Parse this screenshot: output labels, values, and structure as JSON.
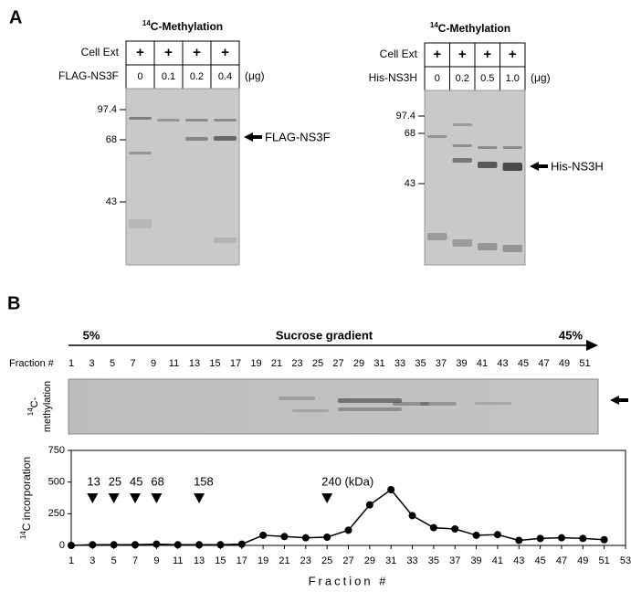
{
  "panel_a": {
    "label": "A",
    "left": {
      "title_sup": "14",
      "title": "C-Methylation",
      "row1_label": "Cell Ext",
      "row1": [
        "+",
        "+",
        "+",
        "+"
      ],
      "row2_label": "FLAG-NS3F",
      "row2": [
        "0",
        "0.1",
        "0.2",
        "0.4"
      ],
      "unit": "(μg)",
      "mw": [
        "97.4",
        "68",
        "43"
      ],
      "band_label": "FLAG-NS3F"
    },
    "right": {
      "title_sup": "14",
      "title": "C-Methylation",
      "row1_label": "Cell Ext",
      "row1": [
        "+",
        "+",
        "+",
        "+"
      ],
      "row2_label": "His-NS3H",
      "row2": [
        "0",
        "0.2",
        "0.5",
        "1.0"
      ],
      "unit": "(μg)",
      "mw": [
        "97.4",
        "68",
        "43"
      ],
      "band_label": "His-NS3H"
    }
  },
  "panel_b": {
    "label": "B",
    "gradient_start": "5%",
    "gradient_title": "Sucrose gradient",
    "gradient_end": "45%",
    "fraction_label": "Fraction #",
    "fractions": [
      "1",
      "3",
      "5",
      "7",
      "9",
      "11",
      "13",
      "15",
      "17",
      "19",
      "21",
      "23",
      "25",
      "27",
      "29",
      "31",
      "33",
      "35",
      "37",
      "39",
      "41",
      "43",
      "45",
      "47",
      "49",
      "51"
    ],
    "strip_ylabel_sup": "14",
    "strip_ylabel": [
      "C-",
      "methylation"
    ]
  },
  "chart_data": {
    "type": "line",
    "color": "#000000",
    "x": [
      1,
      3,
      5,
      7,
      9,
      11,
      13,
      15,
      17,
      19,
      21,
      23,
      25,
      27,
      29,
      31,
      33,
      35,
      37,
      39,
      41,
      43,
      45,
      47,
      49,
      51
    ],
    "values": [
      0,
      5,
      5,
      5,
      10,
      5,
      5,
      5,
      10,
      80,
      70,
      60,
      65,
      120,
      320,
      440,
      235,
      140,
      130,
      80,
      85,
      40,
      55,
      60,
      55,
      45
    ],
    "xlim": [
      1,
      53
    ],
    "xticks": [
      1,
      3,
      5,
      7,
      9,
      11,
      13,
      15,
      17,
      19,
      21,
      23,
      25,
      27,
      29,
      31,
      33,
      35,
      37,
      39,
      41,
      43,
      45,
      47,
      49,
      51,
      53
    ],
    "ylim": [
      0,
      750
    ],
    "yticks": [
      0,
      250,
      500,
      750
    ],
    "ylabel_sup": "14",
    "ylabel": "C incorporation",
    "xlabel": "Fraction #",
    "markers": [
      {
        "x": 3,
        "label": "13"
      },
      {
        "x": 5,
        "label": "25"
      },
      {
        "x": 7,
        "label": "45"
      },
      {
        "x": 9,
        "label": "68"
      },
      {
        "x": 13,
        "label": "158"
      },
      {
        "x": 25,
        "label": "240 (kDa)"
      }
    ]
  }
}
